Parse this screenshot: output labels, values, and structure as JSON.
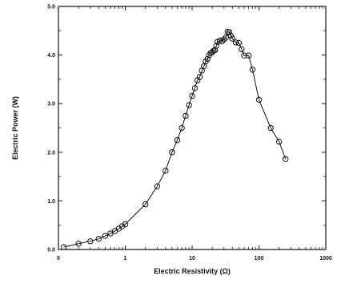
{
  "chart_data": {
    "type": "scatter",
    "title": "",
    "xlabel": "Electric Resistivity (Ω)",
    "ylabel": "Electric Power (W)",
    "xscale": "log",
    "xlim": [
      0.1,
      1000
    ],
    "ylim": [
      0,
      5.0
    ],
    "xticks": [
      0.1,
      1,
      10,
      100,
      1000
    ],
    "xtick_labels": [
      "0",
      "1",
      "10",
      "100",
      "1000"
    ],
    "yticks": [
      0,
      1,
      2,
      3,
      4,
      5
    ],
    "ytick_labels": [
      "0.0",
      "1.0",
      "2.0",
      "3.0",
      "4.0",
      "5.0"
    ],
    "grid": false,
    "marker": "open-circle",
    "line": "connected",
    "x": [
      0.12,
      0.2,
      0.3,
      0.4,
      0.5,
      0.6,
      0.7,
      0.8,
      0.9,
      1.0,
      2.0,
      3.0,
      4.0,
      5.0,
      6.0,
      7.0,
      8.0,
      9.0,
      10,
      11,
      12,
      13,
      14,
      15,
      16,
      17,
      18,
      19,
      20,
      21,
      22,
      23,
      24,
      26,
      28,
      30,
      32,
      34,
      36,
      38,
      40,
      45,
      50,
      55,
      60,
      70,
      80,
      100,
      150,
      200,
      250
    ],
    "y": [
      0.05,
      0.12,
      0.17,
      0.22,
      0.28,
      0.33,
      0.38,
      0.43,
      0.48,
      0.52,
      0.93,
      1.3,
      1.62,
      2.0,
      2.25,
      2.5,
      2.75,
      2.97,
      3.16,
      3.32,
      3.48,
      3.55,
      3.68,
      3.77,
      3.87,
      3.92,
      4.0,
      4.04,
      4.06,
      4.09,
      4.1,
      4.19,
      4.27,
      4.3,
      4.28,
      4.32,
      4.36,
      4.48,
      4.47,
      4.4,
      4.34,
      4.26,
      4.25,
      4.12,
      3.99,
      3.99,
      3.7,
      3.08,
      2.5,
      2.22,
      1.86
    ]
  }
}
